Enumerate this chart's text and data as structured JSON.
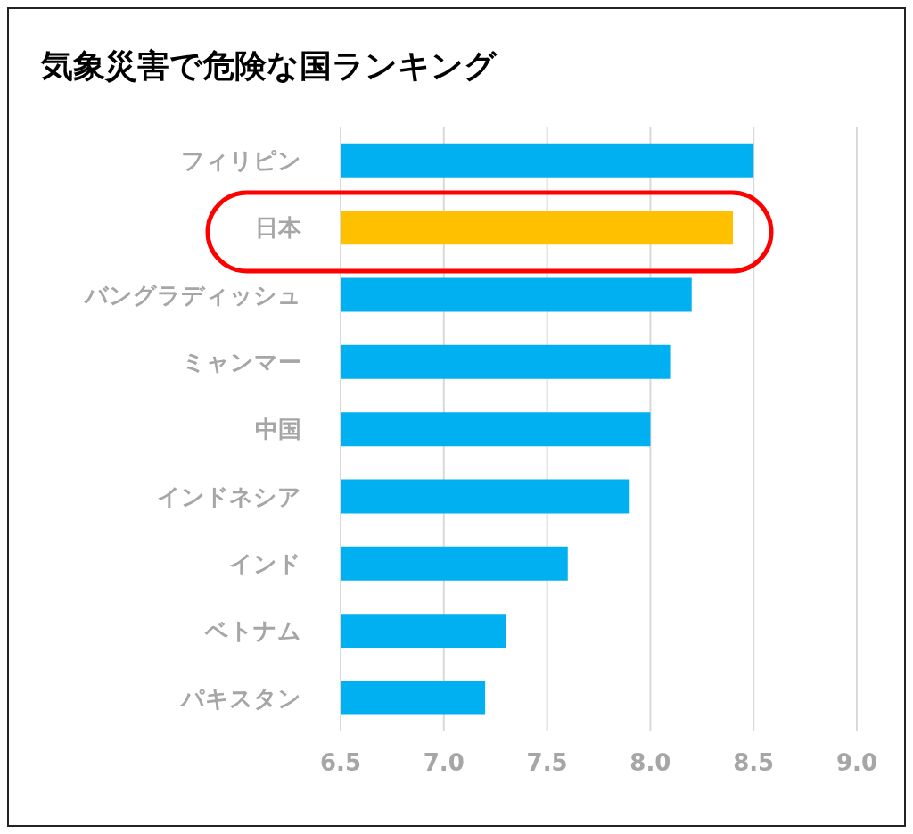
{
  "chart_data": {
    "type": "bar",
    "orientation": "horizontal",
    "title": "気象災害で危険な国ランキング",
    "categories": [
      "フィリピン",
      "日本",
      "バングラディッシュ",
      "ミャンマー",
      "中国",
      "インドネシア",
      "インド",
      "ベトナム",
      "パキスタン"
    ],
    "values": [
      8.5,
      8.4,
      8.2,
      8.1,
      8.0,
      7.9,
      7.6,
      7.3,
      7.2
    ],
    "colors": [
      "#00b0f0",
      "#ffc000",
      "#00b0f0",
      "#00b0f0",
      "#00b0f0",
      "#00b0f0",
      "#00b0f0",
      "#00b0f0",
      "#00b0f0"
    ],
    "xlim": [
      6.5,
      9.0
    ],
    "xticks": [
      {
        "value": 6.5,
        "label": "6.5"
      },
      {
        "value": 7.0,
        "label": "7.0"
      },
      {
        "value": 7.5,
        "label": "7.5"
      },
      {
        "value": 8.0,
        "label": "8.0"
      },
      {
        "value": 8.5,
        "label": "8.5"
      },
      {
        "value": 9.0,
        "label": "9.0"
      }
    ],
    "grid": "x",
    "legend": false
  }
}
